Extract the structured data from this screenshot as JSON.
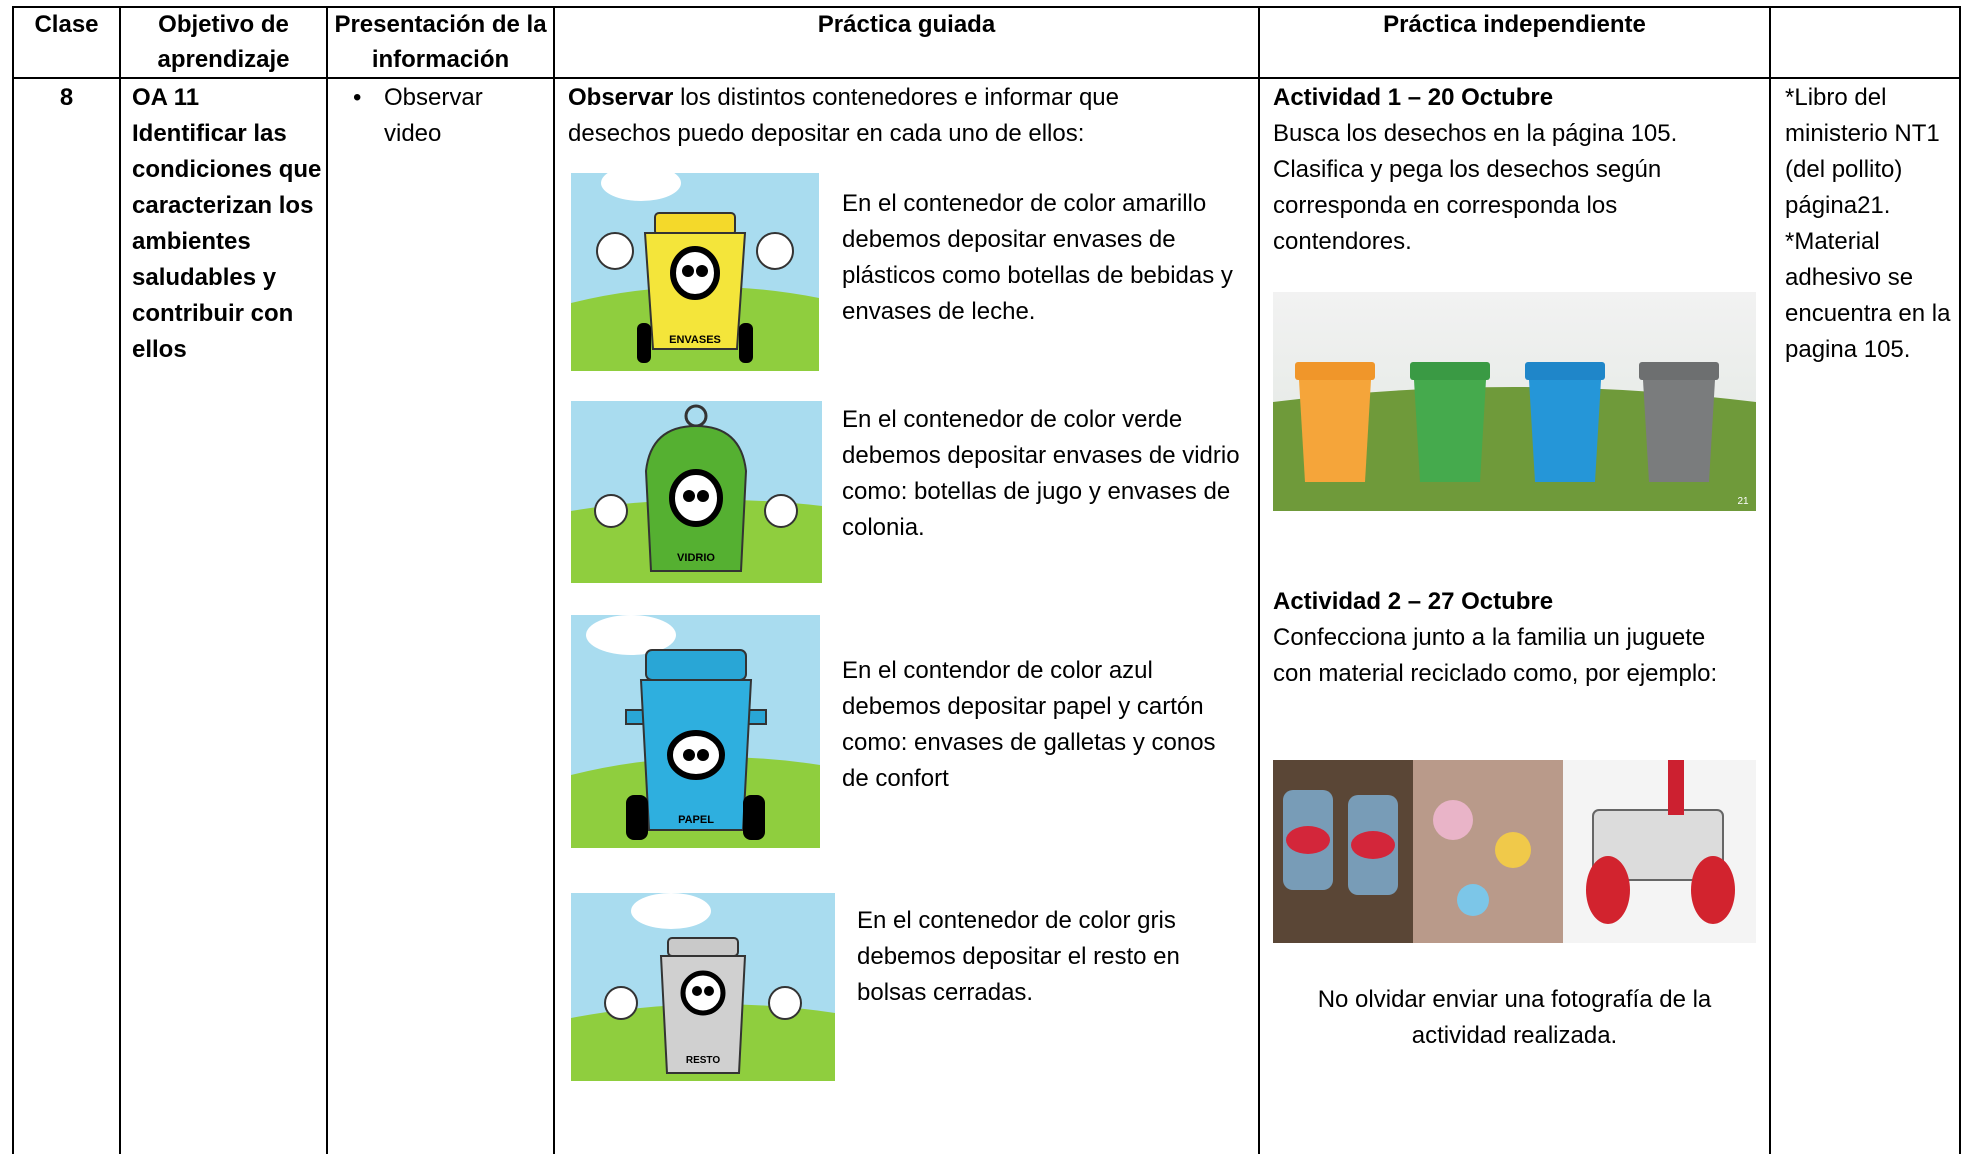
{
  "table": {
    "header": [
      "Clase",
      "Objetivo de aprendizaje",
      "Presentación de la información",
      "Práctica guiada",
      "Práctica independiente"
    ],
    "row": {
      "clase": "8",
      "objetivo": {
        "code": "OA 11",
        "text": "Identificar las condiciones que caracterizan los ambientes saludables y contribuir con ellos"
      },
      "presentacion": [
        "Observar video"
      ],
      "guiada": {
        "intro_bold": "Observar",
        "intro": "los distintos contenedores e informar que desechos puedo depositar en cada uno de ellos:",
        "items": [
          {
            "label": "ENVASES",
            "text": "En el contenedor de color amarillo debemos depositar envases de plásticos como botellas de bebidas y envases de leche."
          },
          {
            "label": "VIDRIO",
            "text": "En el contenedor de color verde debemos depositar envases de vidrio como: botellas de jugo y envases de colonia."
          },
          {
            "label": "PAPEL",
            "text": "En el contendor de color azul debemos depositar papel y cartón como: envases de galletas y conos de confort"
          },
          {
            "label": "RESTO",
            "text": "En el contenedor de color gris debemos depositar el resto en bolsas cerradas."
          }
        ]
      },
      "independiente": {
        "actividad1": {
          "title": "Actividad 1 – 20 Octubre",
          "text": "Busca los desechos en la página 105. Clasifica y pega los desechos según corresponda en corresponda los contendores.",
          "image_label": "21"
        },
        "actividad2": {
          "title": "Actividad 2 – 27 Octubre",
          "text": "Confecciona junto a la familia un juguete con material reciclado como, por ejemplo:"
        },
        "note": "No olvidar enviar una fotografía de la actividad realizada."
      },
      "recursos": [
        "*Libro del ministerio NT1 (del pollito) página21.",
        "*Material adhesivo se encuentra en la pagina 105."
      ]
    }
  }
}
